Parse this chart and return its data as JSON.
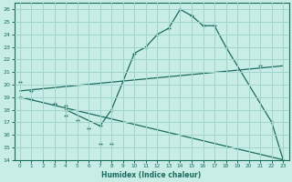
{
  "xlabel": "Humidex (Indice chaleur)",
  "xlim": [
    -0.5,
    23.5
  ],
  "ylim": [
    14,
    26.5
  ],
  "yticks": [
    14,
    15,
    16,
    17,
    18,
    19,
    20,
    21,
    22,
    23,
    24,
    25,
    26
  ],
  "xticks": [
    0,
    1,
    2,
    3,
    4,
    5,
    6,
    7,
    8,
    9,
    10,
    11,
    12,
    13,
    14,
    15,
    16,
    17,
    18,
    19,
    20,
    21,
    22,
    23
  ],
  "background_color": "#c8ece6",
  "grid_color": "#a0d4cc",
  "line_color": "#1a6b60",
  "line1_x": [
    0,
    1,
    3,
    4,
    21
  ],
  "line1_y": [
    20.2,
    19.5,
    18.5,
    18.3,
    21.5
  ],
  "line2_x": [
    0,
    1,
    3,
    4,
    5,
    6,
    7,
    8,
    23
  ],
  "line2_y": [
    19.0,
    18.8,
    18.5,
    17.5,
    17.2,
    16.5,
    15.3,
    15.3,
    14.0
  ],
  "line3_x": [
    4,
    7,
    8,
    10,
    11,
    12,
    13,
    14,
    15,
    16,
    17,
    18,
    22,
    23
  ],
  "line3_y": [
    18.0,
    16.7,
    18.0,
    22.5,
    23.0,
    24.0,
    24.5,
    26.0,
    25.5,
    24.7,
    24.7,
    23.0,
    17.0,
    14.0
  ]
}
